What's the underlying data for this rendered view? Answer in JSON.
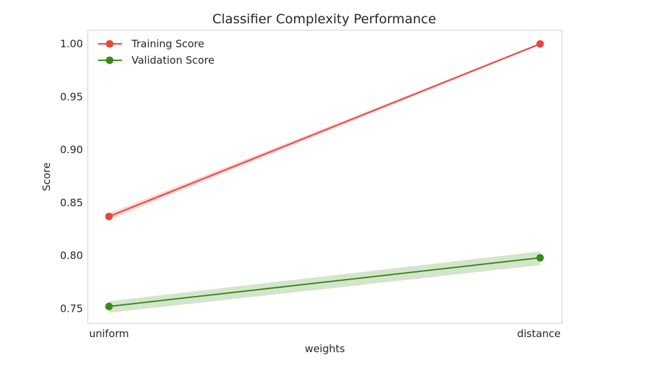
{
  "chart_data": {
    "type": "line",
    "title": "Classifier Complexity Performance",
    "xlabel": "weights",
    "ylabel": "Score",
    "categories": [
      "uniform",
      "distance"
    ],
    "ylim": [
      0.736,
      1.013
    ],
    "yticks": [
      0.75,
      0.8,
      0.85,
      0.9,
      0.95,
      1.0
    ],
    "ytick_labels": [
      "0.75",
      "0.80",
      "0.85",
      "0.90",
      "0.95",
      "1.00"
    ],
    "grid": false,
    "legend_position": "upper-left",
    "series": [
      {
        "name": "Training Score",
        "color": "#e8453c",
        "values": [
          0.837,
          1.0
        ],
        "band": [
          [
            0.834,
            0.84
          ],
          [
            0.999,
            1.001
          ]
        ]
      },
      {
        "name": "Validation Score",
        "color": "#3a8a1a",
        "values": [
          0.752,
          0.798
        ],
        "band": [
          [
            0.746,
            0.757
          ],
          [
            0.791,
            0.804
          ]
        ]
      }
    ]
  }
}
